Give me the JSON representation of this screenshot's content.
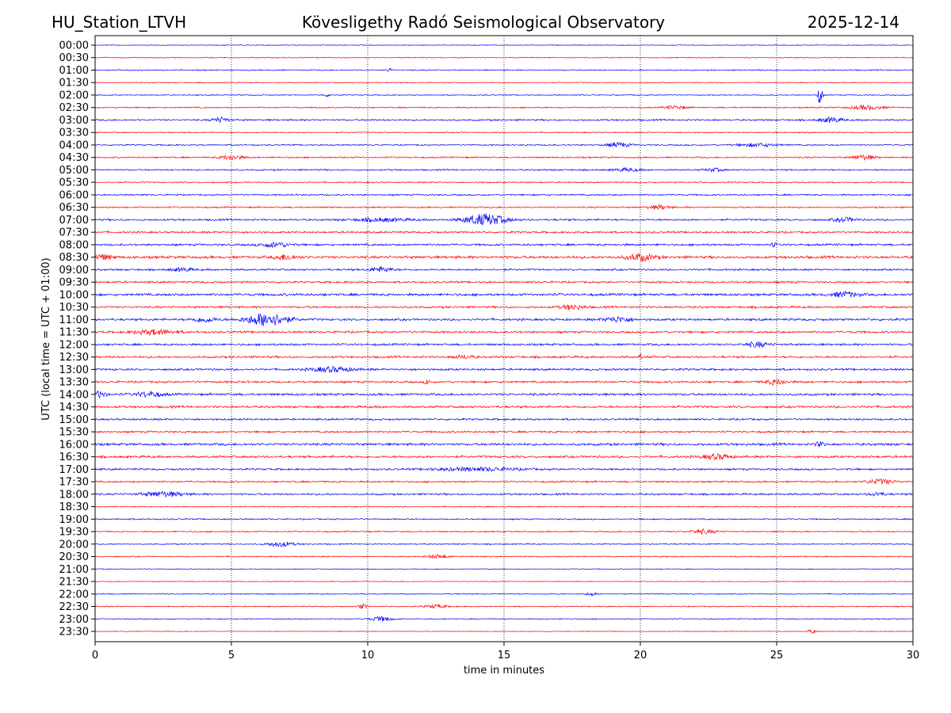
{
  "chart_data": {
    "type": "line",
    "title_left": "HU_Station_LTVH",
    "title": "Kövesligethy Radó Seismological Observatory",
    "title_right": "2025-12-14",
    "xlabel": "time in minutes",
    "ylabel": "UTC (local time = UTC + 01:00)",
    "xlim": [
      0,
      30
    ],
    "xticks": [
      "0",
      "5",
      "10",
      "15",
      "20",
      "25",
      "30"
    ],
    "grid": "vertical dotted at each x tick",
    "row_labels": [
      "00:00",
      "00:30",
      "01:00",
      "01:30",
      "02:00",
      "02:30",
      "03:00",
      "03:30",
      "04:00",
      "04:30",
      "05:00",
      "05:30",
      "06:00",
      "06:30",
      "07:00",
      "07:30",
      "08:00",
      "08:30",
      "09:00",
      "09:30",
      "10:00",
      "10:30",
      "11:00",
      "11:30",
      "12:00",
      "12:30",
      "13:00",
      "13:30",
      "14:00",
      "14:30",
      "15:00",
      "15:30",
      "16:00",
      "16:30",
      "17:00",
      "17:30",
      "18:00",
      "18:30",
      "19:00",
      "19:30",
      "20:00",
      "20:30",
      "21:00",
      "21:30",
      "22:00",
      "22:30",
      "23:00",
      "23:30"
    ],
    "trace_colors": [
      "#0000ff",
      "#ff0000"
    ],
    "noise_level": [
      0.4,
      0.5,
      0.6,
      0.5,
      0.5,
      0.7,
      0.9,
      0.6,
      0.7,
      0.8,
      0.8,
      0.7,
      0.8,
      0.8,
      1.0,
      1.0,
      1.1,
      1.4,
      1.0,
      1.0,
      1.3,
      1.1,
      1.2,
      1.1,
      1.1,
      1.1,
      1.1,
      1.1,
      1.2,
      1.2,
      1.0,
      1.0,
      1.3,
      1.2,
      1.0,
      0.9,
      1.0,
      0.6,
      0.7,
      0.7,
      0.6,
      0.6,
      0.4,
      0.4,
      0.5,
      0.6,
      0.5,
      0.4
    ],
    "events": [
      {
        "row": 2,
        "minute": 10.8,
        "amplitude": 2,
        "duration": 0.2
      },
      {
        "row": 4,
        "minute": 26.6,
        "amplitude": 15,
        "duration": 0.15
      },
      {
        "row": 4,
        "minute": 8.5,
        "amplitude": 1.5,
        "duration": 0.3
      },
      {
        "row": 5,
        "minute": 21.3,
        "amplitude": 2,
        "duration": 0.8
      },
      {
        "row": 5,
        "minute": 28.3,
        "amplitude": 2.5,
        "duration": 1.2
      },
      {
        "row": 6,
        "minute": 4.6,
        "amplitude": 3,
        "duration": 0.6
      },
      {
        "row": 6,
        "minute": 27.0,
        "amplitude": 3,
        "duration": 0.8
      },
      {
        "row": 8,
        "minute": 19.2,
        "amplitude": 3,
        "duration": 0.8
      },
      {
        "row": 8,
        "minute": 24.3,
        "amplitude": 2,
        "duration": 1.5
      },
      {
        "row": 9,
        "minute": 5.0,
        "amplitude": 3,
        "duration": 0.8
      },
      {
        "row": 9,
        "minute": 28.2,
        "amplitude": 3,
        "duration": 0.8
      },
      {
        "row": 10,
        "minute": 19.5,
        "amplitude": 2,
        "duration": 1.0
      },
      {
        "row": 10,
        "minute": 22.7,
        "amplitude": 2,
        "duration": 0.6
      },
      {
        "row": 13,
        "minute": 20.7,
        "amplitude": 2.5,
        "duration": 0.8
      },
      {
        "row": 14,
        "minute": 14.3,
        "amplitude": 7,
        "duration": 1.5
      },
      {
        "row": 14,
        "minute": 10.5,
        "amplitude": 2,
        "duration": 2.0
      },
      {
        "row": 14,
        "minute": 27.5,
        "amplitude": 2.5,
        "duration": 0.8
      },
      {
        "row": 16,
        "minute": 6.6,
        "amplitude": 3,
        "duration": 1.0
      },
      {
        "row": 16,
        "minute": 24.9,
        "amplitude": 6,
        "duration": 0.1
      },
      {
        "row": 17,
        "minute": 0.3,
        "amplitude": 3,
        "duration": 0.6
      },
      {
        "row": 17,
        "minute": 7.0,
        "amplitude": 3,
        "duration": 0.8
      },
      {
        "row": 17,
        "minute": 20.0,
        "amplitude": 4,
        "duration": 1.0
      },
      {
        "row": 18,
        "minute": 10.5,
        "amplitude": 3,
        "duration": 0.8
      },
      {
        "row": 18,
        "minute": 3.2,
        "amplitude": 2,
        "duration": 0.8
      },
      {
        "row": 20,
        "minute": 27.5,
        "amplitude": 3,
        "duration": 1.0
      },
      {
        "row": 21,
        "minute": 17.5,
        "amplitude": 3,
        "duration": 0.8
      },
      {
        "row": 22,
        "minute": 6.3,
        "amplitude": 8,
        "duration": 1.5
      },
      {
        "row": 22,
        "minute": 4.0,
        "amplitude": 3,
        "duration": 0.8
      },
      {
        "row": 22,
        "minute": 19.2,
        "amplitude": 3,
        "duration": 1.0
      },
      {
        "row": 23,
        "minute": 2.2,
        "amplitude": 3,
        "duration": 1.5
      },
      {
        "row": 24,
        "minute": 24.3,
        "amplitude": 3,
        "duration": 0.8
      },
      {
        "row": 25,
        "minute": 20.0,
        "amplitude": 4,
        "duration": 0.1
      },
      {
        "row": 25,
        "minute": 13.5,
        "amplitude": 2,
        "duration": 0.8
      },
      {
        "row": 26,
        "minute": 8.7,
        "amplitude": 3,
        "duration": 1.5
      },
      {
        "row": 27,
        "minute": 25.0,
        "amplitude": 3,
        "duration": 0.8
      },
      {
        "row": 27,
        "minute": 12.2,
        "amplitude": 3,
        "duration": 0.2
      },
      {
        "row": 28,
        "minute": 0.2,
        "amplitude": 4,
        "duration": 0.4
      },
      {
        "row": 28,
        "minute": 2.0,
        "amplitude": 3,
        "duration": 1.0
      },
      {
        "row": 32,
        "minute": 26.6,
        "amplitude": 3,
        "duration": 0.3
      },
      {
        "row": 33,
        "minute": 22.8,
        "amplitude": 3,
        "duration": 1.0
      },
      {
        "row": 34,
        "minute": 14.0,
        "amplitude": 2,
        "duration": 3.0
      },
      {
        "row": 35,
        "minute": 28.8,
        "amplitude": 3,
        "duration": 1.0
      },
      {
        "row": 36,
        "minute": 2.5,
        "amplitude": 3,
        "duration": 1.5
      },
      {
        "row": 36,
        "minute": 28.7,
        "amplitude": 2,
        "duration": 0.6
      },
      {
        "row": 39,
        "minute": 22.3,
        "amplitude": 2.5,
        "duration": 1.0
      },
      {
        "row": 40,
        "minute": 6.8,
        "amplitude": 3,
        "duration": 1.0
      },
      {
        "row": 41,
        "minute": 12.6,
        "amplitude": 2.5,
        "duration": 0.8
      },
      {
        "row": 44,
        "minute": 18.2,
        "amplitude": 2,
        "duration": 0.4
      },
      {
        "row": 45,
        "minute": 9.8,
        "amplitude": 3,
        "duration": 0.3
      },
      {
        "row": 45,
        "minute": 12.5,
        "amplitude": 2,
        "duration": 0.8
      },
      {
        "row": 46,
        "minute": 10.5,
        "amplitude": 3,
        "duration": 0.8
      },
      {
        "row": 47,
        "minute": 26.3,
        "amplitude": 2,
        "duration": 0.4
      }
    ]
  }
}
